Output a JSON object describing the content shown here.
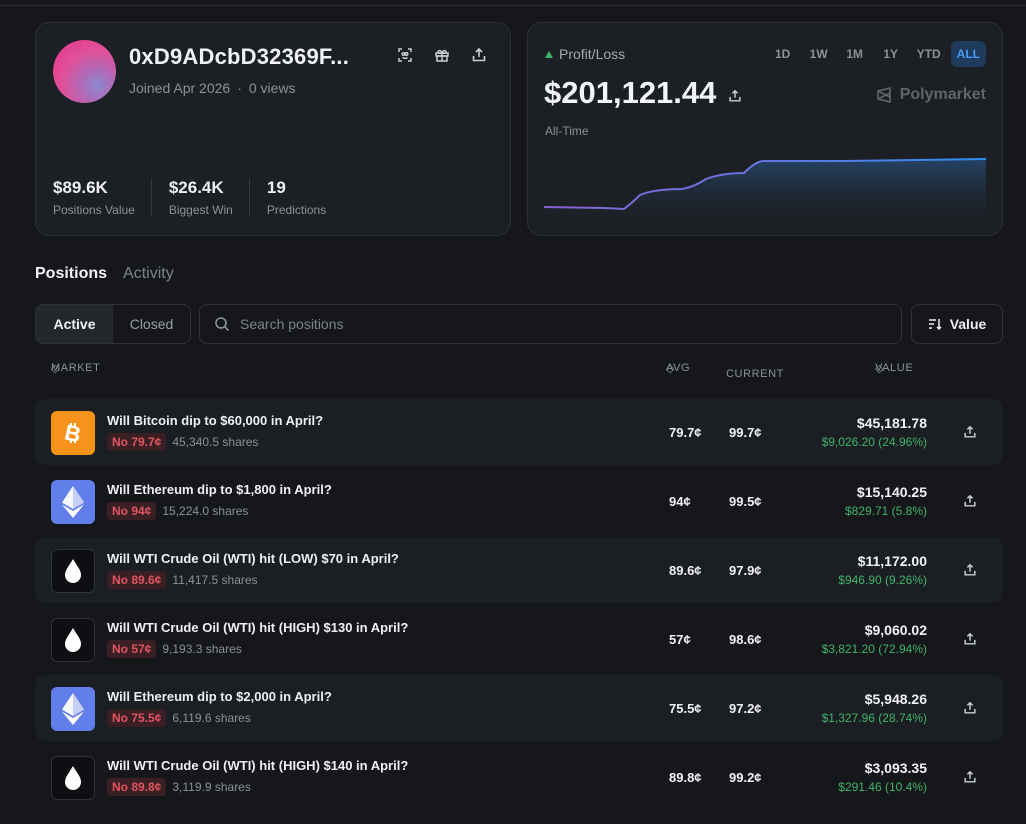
{
  "profile": {
    "address": "0xD9ADcbD32369F...",
    "joined": "Joined Apr 2026",
    "separator": "·",
    "views": "0 views",
    "stats": [
      {
        "value": "$89.6K",
        "label": "Positions Value"
      },
      {
        "value": "$26.4K",
        "label": "Biggest Win"
      },
      {
        "value": "19",
        "label": "Predictions"
      }
    ]
  },
  "pl": {
    "label": "Profit/Loss",
    "amount": "$201,121.44",
    "period": "All-Time",
    "brand": "Polymarket",
    "ranges": [
      "1D",
      "1W",
      "1M",
      "1Y",
      "YTD",
      "ALL"
    ],
    "active_range": "ALL",
    "colors": {
      "line_start": "#8a63d2",
      "line_end": "#2f8fef",
      "up": "#3fb36a"
    }
  },
  "tabs": {
    "positions": "Positions",
    "activity": "Activity"
  },
  "filters": {
    "active": "Active",
    "closed": "Closed",
    "search_placeholder": "Search positions",
    "sort_label": "Value"
  },
  "table": {
    "headers": {
      "market": "MARKET",
      "avg": "AVG",
      "current": "CURRENT",
      "value": "VALUE"
    },
    "rows": [
      {
        "icon": "bitcoin-icon",
        "title": "Will Bitcoin dip to $60,000 in April?",
        "badge": "No 79.7¢",
        "shares": "45,340.5 shares",
        "avg": "79.7¢",
        "current": "99.7¢",
        "value": "$45,181.78",
        "pnl": "$9,026.20 (24.96%)"
      },
      {
        "icon": "ethereum-icon",
        "title": "Will Ethereum dip to $1,800 in April?",
        "badge": "No 94¢",
        "shares": "15,224.0 shares",
        "avg": "94¢",
        "current": "99.5¢",
        "value": "$15,140.25",
        "pnl": "$829.71 (5.8%)"
      },
      {
        "icon": "oil-drop-icon",
        "title": "Will WTI Crude Oil (WTI) hit (LOW) $70 in April?",
        "badge": "No 89.6¢",
        "shares": "11,417.5 shares",
        "avg": "89.6¢",
        "current": "97.9¢",
        "value": "$11,172.00",
        "pnl": "$946.90 (9.26%)"
      },
      {
        "icon": "oil-drop-icon",
        "title": "Will WTI Crude Oil (WTI) hit (HIGH) $130 in April?",
        "badge": "No 57¢",
        "shares": "9,193.3 shares",
        "avg": "57¢",
        "current": "98.6¢",
        "value": "$9,060.02",
        "pnl": "$3,821.20 (72.94%)"
      },
      {
        "icon": "ethereum-icon",
        "title": "Will Ethereum dip to $2,000 in April?",
        "badge": "No 75.5¢",
        "shares": "6,119.6 shares",
        "avg": "75.5¢",
        "current": "97.2¢",
        "value": "$5,948.26",
        "pnl": "$1,327.96 (28.74%)"
      },
      {
        "icon": "oil-drop-icon",
        "title": "Will WTI Crude Oil (WTI) hit (HIGH) $140 in April?",
        "badge": "No 89.8¢",
        "shares": "3,119.9 shares",
        "avg": "89.8¢",
        "current": "99.2¢",
        "value": "$3,093.35",
        "pnl": "$291.46 (10.4%)"
      }
    ]
  }
}
